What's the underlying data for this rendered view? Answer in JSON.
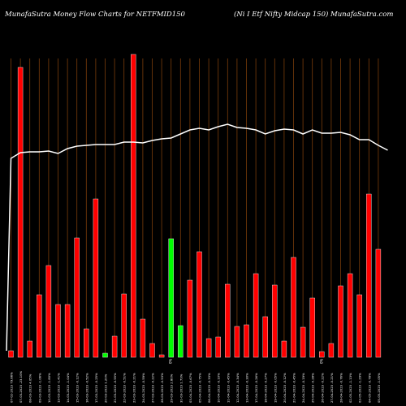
{
  "header": {
    "left": "MunafaSutra  Money Flow  Charts for NETFMID150",
    "right": "(Ni   I Etf  Nifty Midcap 150) MunafaSutra.com"
  },
  "chart_data": {
    "type": "bar",
    "series": [
      {
        "name": "money-flow",
        "kind": "bar"
      },
      {
        "name": "price",
        "kind": "line"
      }
    ],
    "bars": [
      {
        "h": 8,
        "c": "red"
      },
      {
        "h": 357,
        "c": "red"
      },
      {
        "h": 20,
        "c": "red"
      },
      {
        "h": 77,
        "c": "red"
      },
      {
        "h": 113,
        "c": "red"
      },
      {
        "h": 65,
        "c": "red"
      },
      {
        "h": 65,
        "c": "red"
      },
      {
        "h": 147,
        "c": "red"
      },
      {
        "h": 35,
        "c": "red"
      },
      {
        "h": 195,
        "c": "red"
      },
      {
        "h": 5,
        "c": "green"
      },
      {
        "h": 26,
        "c": "red"
      },
      {
        "h": 78,
        "c": "red"
      },
      {
        "h": 373,
        "c": "red"
      },
      {
        "h": 47,
        "c": "red"
      },
      {
        "h": 17,
        "c": "red"
      },
      {
        "h": 3,
        "c": "red"
      },
      {
        "h": 146,
        "c": "green"
      },
      {
        "h": 39,
        "c": "green"
      },
      {
        "h": 95,
        "c": "red"
      },
      {
        "h": 130,
        "c": "red"
      },
      {
        "h": 23,
        "c": "red"
      },
      {
        "h": 25,
        "c": "red"
      },
      {
        "h": 90,
        "c": "red"
      },
      {
        "h": 38,
        "c": "red"
      },
      {
        "h": 40,
        "c": "red"
      },
      {
        "h": 103,
        "c": "red"
      },
      {
        "h": 50,
        "c": "red"
      },
      {
        "h": 89,
        "c": "red"
      },
      {
        "h": 20,
        "c": "red"
      },
      {
        "h": 123,
        "c": "red"
      },
      {
        "h": 37,
        "c": "red"
      },
      {
        "h": 73,
        "c": "red"
      },
      {
        "h": 7,
        "c": "red"
      },
      {
        "h": 17,
        "c": "red"
      },
      {
        "h": 88,
        "c": "red"
      },
      {
        "h": 103,
        "c": "red"
      },
      {
        "h": 77,
        "c": "red"
      },
      {
        "h": 201,
        "c": "red"
      },
      {
        "h": 133,
        "c": "red"
      }
    ],
    "price_line": [
      195,
      188,
      187,
      187,
      186,
      189,
      183,
      180,
      179,
      178,
      178,
      178,
      175,
      175,
      176,
      173,
      171,
      170,
      165,
      160,
      158,
      160,
      156,
      153,
      157,
      158,
      160,
      165,
      161,
      159,
      160,
      165,
      160,
      164,
      164,
      163,
      166,
      172,
      172,
      179,
      185
    ],
    "x_labels": [
      "07-02-2023 79.86%",
      "07-03-2023 -23.10%",
      "08-03-2023 4.05%",
      "09-03-2023 -1.06%",
      "10-03-2023 -1.80%",
      "13-03-2023 -1.41%",
      "14-03-2023 -1.04%",
      "15-03-2023 -0.12%",
      "16-03-2023 -0.52%",
      "17-03-2023 -0.25%",
      "20-03-2023 1.20%",
      "21-03-2023 -0.55%",
      "22-03-2023 -0.51%",
      "23-03-2023 -0.21%",
      "24-03-2023 -0.59%",
      "27-03-2023 -0.22%",
      "28-03-2023 -0.53%",
      "29-03-2023 2.80%",
      "31-03-2023 1.73%",
      "03-04-2023 -0.67%",
      "05-04-2023 -0.75%",
      "06-04-2023 -0.33%",
      "10-04-2023 -0.10%",
      "11-04-2023 -0.45%",
      "12-04-2023 -0.34%",
      "13-04-2023 -0.30%",
      "17-04-2023 -0.26%",
      "18-04-2023 -0.27%",
      "19-04-2023 -0.05%",
      "20-04-2023 -0.12%",
      "21-04-2023 -0.45%",
      "24-04-2023 -0.19%",
      "25-04-2023 -0.28%",
      "26-04-2023 -0.22%",
      "27-04-2023 -0.21%",
      "28-04-2023 -0.76%",
      "02-05-2023 -1.13%",
      "03-05-2023 -1.29%",
      "04-05-2023 -0.78%",
      "05-05-2023 -1.05%"
    ],
    "marker_labels": [
      "0%",
      "0%"
    ],
    "grid": true
  }
}
